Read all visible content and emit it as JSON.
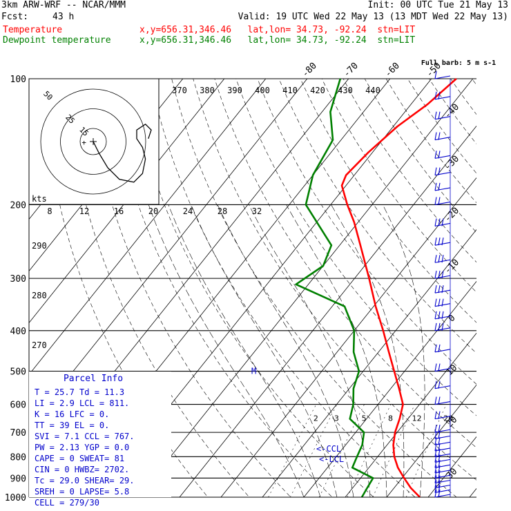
{
  "header": {
    "model": "3km ARW-WRF -- NCAR/MMM",
    "init": "Init: 00 UTC Tue 21 May 13",
    "fcst_label": "Fcst:",
    "fcst_value": "43 h",
    "valid": "Valid: 19 UTC Wed 22 May 13 (13 MDT Wed 22 May 13)",
    "temp_label": "Temperature",
    "temp_info": "x,y=656.31,346.46   lat,lon= 34.73, -92.24  stn=LIT",
    "dew_label": "Dewpoint temperature",
    "dew_info": "x,y=656.31,346.46   lat,lon= 34.73, -92.24  stn=LIT"
  },
  "colors": {
    "temperature": "#ff0000",
    "dewpoint": "#008000",
    "parcel_text": "#0000cc",
    "wind": "#0000cc",
    "grid": "#000000"
  },
  "chart_data": {
    "type": "line",
    "chart_kind": "skew-T log-P sounding",
    "y_axis": {
      "scale": "log",
      "unit": "hPa",
      "ylim": [
        1000,
        100
      ],
      "ticks": [
        100,
        200,
        300,
        400,
        500,
        600,
        700,
        800,
        900,
        1000
      ]
    },
    "skew_isotherm_labels": [
      -80,
      -70,
      -60,
      -50,
      -40,
      -30,
      -20,
      -10,
      0,
      10,
      20,
      30,
      40
    ],
    "theta_labels": [
      370,
      380,
      390,
      400,
      410,
      420,
      430,
      440
    ],
    "hodograph_labels": [
      "kts",
      "8",
      "12",
      "16",
      "20",
      "24",
      "28",
      "32"
    ],
    "mixing_ratio_labels": [
      "2",
      "3",
      "5",
      "8",
      "12",
      "20"
    ],
    "theta_e_side_labels": [
      "290",
      "280",
      "270"
    ],
    "hodograph_ring_labels": [
      "5",
      "15",
      "25",
      "35",
      "50"
    ],
    "hodograph_trace": [
      [
        0,
        0
      ],
      [
        2,
        -4
      ],
      [
        5,
        -9
      ],
      [
        9,
        -13
      ],
      [
        14,
        -14
      ],
      [
        17,
        -11
      ],
      [
        18,
        -6
      ],
      [
        17,
        -2
      ],
      [
        15,
        1
      ],
      [
        15,
        4
      ],
      [
        18,
        6
      ],
      [
        20,
        4
      ],
      [
        19,
        1
      ]
    ],
    "series": [
      {
        "name": "Temperature",
        "points": [
          [
            1000,
            28
          ],
          [
            950,
            24
          ],
          [
            900,
            20.5
          ],
          [
            850,
            17
          ],
          [
            800,
            14
          ],
          [
            750,
            11.5
          ],
          [
            700,
            9.5
          ],
          [
            650,
            8
          ],
          [
            600,
            6
          ],
          [
            550,
            2
          ],
          [
            500,
            -2.5
          ],
          [
            450,
            -7.5
          ],
          [
            400,
            -13
          ],
          [
            350,
            -19.5
          ],
          [
            300,
            -26.5
          ],
          [
            250,
            -35
          ],
          [
            220,
            -41
          ],
          [
            200,
            -46
          ],
          [
            180,
            -51
          ],
          [
            170,
            -52
          ],
          [
            150,
            -51
          ],
          [
            130,
            -49
          ],
          [
            115,
            -46
          ],
          [
            100,
            -44
          ]
        ]
      },
      {
        "name": "Dewpoint",
        "points": [
          [
            1000,
            14
          ],
          [
            950,
            13.5
          ],
          [
            900,
            13
          ],
          [
            850,
            6
          ],
          [
            800,
            5
          ],
          [
            750,
            4
          ],
          [
            700,
            2
          ],
          [
            650,
            -4
          ],
          [
            600,
            -6
          ],
          [
            550,
            -9
          ],
          [
            500,
            -11
          ],
          [
            450,
            -16
          ],
          [
            400,
            -20
          ],
          [
            350,
            -27
          ],
          [
            310,
            -43
          ],
          [
            280,
            -40
          ],
          [
            250,
            -42
          ],
          [
            200,
            -56
          ],
          [
            170,
            -60
          ],
          [
            140,
            -62
          ],
          [
            120,
            -68
          ],
          [
            100,
            -72
          ]
        ]
      }
    ],
    "annotations": [
      "<-CCL",
      "<-LCL",
      "M"
    ],
    "wind_profile_label": "Full barb: 5 m s-1",
    "wind_barbs": [
      {
        "p": 1000,
        "feathers": 2
      },
      {
        "p": 975,
        "feathers": 2
      },
      {
        "p": 950,
        "feathers": 2
      },
      {
        "p": 925,
        "feathers": 2
      },
      {
        "p": 900,
        "feathers": 2
      },
      {
        "p": 875,
        "feathers": 2
      },
      {
        "p": 850,
        "feathers": 2
      },
      {
        "p": 825,
        "feathers": 2
      },
      {
        "p": 800,
        "feathers": 2
      },
      {
        "p": 775,
        "feathers": 2
      },
      {
        "p": 750,
        "feathers": 2
      },
      {
        "p": 725,
        "feathers": 2
      },
      {
        "p": 700,
        "feathers": 2
      },
      {
        "p": 650,
        "feathers": 2
      },
      {
        "p": 600,
        "feathers": 2
      },
      {
        "p": 550,
        "feathers": 2
      },
      {
        "p": 500,
        "feathers": 2
      },
      {
        "p": 450,
        "feathers": 2
      },
      {
        "p": 400,
        "feathers": 3
      },
      {
        "p": 375,
        "feathers": 3
      },
      {
        "p": 350,
        "feathers": 3
      },
      {
        "p": 325,
        "feathers": 3
      },
      {
        "p": 300,
        "feathers": 3
      },
      {
        "p": 275,
        "feathers": 3
      },
      {
        "p": 250,
        "feathers": 3
      },
      {
        "p": 225,
        "feathers": 3
      },
      {
        "p": 200,
        "feathers": 2
      },
      {
        "p": 185,
        "feathers": 2
      },
      {
        "p": 170,
        "feathers": 2
      },
      {
        "p": 155,
        "feathers": 2
      },
      {
        "p": 140,
        "feathers": 2
      },
      {
        "p": 125,
        "feathers": 2
      },
      {
        "p": 112,
        "feathers": 2
      },
      {
        "p": 100,
        "feathers": 1
      }
    ]
  },
  "parcel_info": {
    "title": "Parcel Info",
    "rows": [
      "T   =   25.7  Td =  11.3",
      "LI  =    2.9  LCL =  811.",
      "K   =     16  LFC =     0.",
      "TT  =     39  EL  =     0.",
      "SVI =    7.1  CCL =  767.",
      "PW  =   2.13  YGP =   0.0",
      "CAPE =     0  SWEAT=   81",
      "CIN =      0  HWBZ= 2702.",
      "Tc  =   29.0  SHEAR=  29.",
      "SREH =     0  LAPSE=  5.8",
      "CELL = 279/30"
    ]
  }
}
